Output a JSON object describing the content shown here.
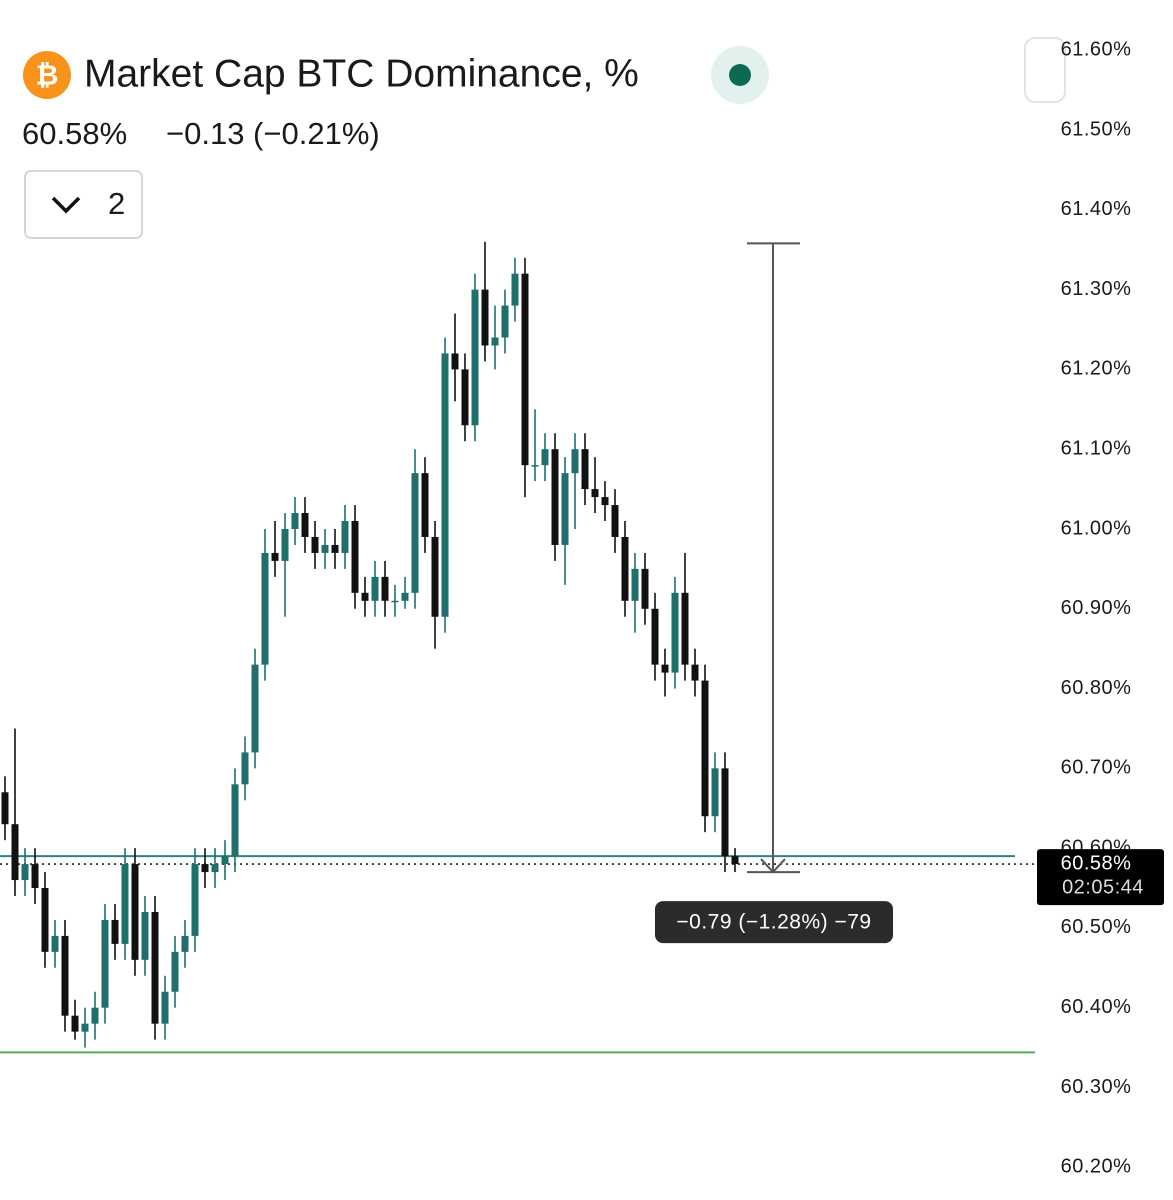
{
  "chart_data": {
    "type": "candlestick",
    "title": "Market Cap BTC Dominance, %",
    "last_value": "60.58%",
    "change": "−0.13 (−0.21%)",
    "indicator_count": "2",
    "up_color": "#1f6f6c",
    "down_color": "#111111",
    "ylim": [
      60.159,
      61.663
    ],
    "yticks": [
      {
        "value": 61.6,
        "label": "61.60%"
      },
      {
        "value": 61.5,
        "label": "61.50%"
      },
      {
        "value": 61.4,
        "label": "61.40%"
      },
      {
        "value": 61.3,
        "label": "61.30%"
      },
      {
        "value": 61.2,
        "label": "61.20%"
      },
      {
        "value": 61.1,
        "label": "61.10%"
      },
      {
        "value": 61.0,
        "label": "61.00%"
      },
      {
        "value": 60.9,
        "label": "60.90%"
      },
      {
        "value": 60.8,
        "label": "60.80%"
      },
      {
        "value": 60.7,
        "label": "60.70%"
      },
      {
        "value": 60.6,
        "label": "60.60%"
      },
      {
        "value": 60.5,
        "label": "60.50%"
      },
      {
        "value": 60.4,
        "label": "60.40%"
      },
      {
        "value": 60.3,
        "label": "60.30%"
      },
      {
        "value": 60.2,
        "label": "60.20%"
      }
    ],
    "grid": false,
    "open": [
      60.67,
      60.63,
      60.56,
      60.58,
      60.55,
      60.47,
      60.49,
      60.39,
      60.37,
      60.38,
      60.4,
      60.51,
      60.48,
      60.58,
      60.46,
      60.52,
      60.38,
      60.42,
      60.47,
      60.49,
      60.58,
      60.57,
      60.58,
      60.59,
      60.68,
      60.72,
      60.83,
      60.97,
      60.96,
      61.0,
      61.02,
      60.99,
      60.97,
      60.98,
      60.97,
      61.01,
      60.92,
      60.91,
      60.94,
      60.91,
      60.91,
      60.92,
      61.07,
      60.99,
      60.89,
      61.22,
      61.2,
      61.13,
      61.3,
      61.23,
      61.24,
      61.28,
      61.32,
      61.08,
      61.08,
      61.1,
      60.98,
      61.07,
      61.1,
      61.05,
      61.04,
      61.03,
      60.99,
      60.91,
      60.95,
      60.9,
      60.83,
      60.82,
      60.92,
      60.83,
      60.81,
      60.64,
      60.7,
      60.59
    ],
    "high": [
      60.69,
      60.75,
      60.6,
      60.6,
      60.57,
      60.51,
      60.51,
      60.41,
      60.4,
      60.42,
      60.53,
      60.53,
      60.6,
      60.6,
      60.54,
      60.54,
      60.44,
      60.49,
      60.51,
      60.6,
      60.6,
      60.6,
      60.61,
      60.7,
      60.74,
      60.85,
      61.0,
      61.01,
      61.02,
      61.04,
      61.04,
      61.01,
      61.0,
      61.0,
      61.03,
      61.03,
      60.94,
      60.96,
      60.96,
      60.93,
      60.94,
      61.1,
      61.09,
      61.01,
      61.24,
      61.27,
      61.22,
      61.32,
      61.36,
      61.28,
      61.3,
      61.34,
      61.34,
      61.15,
      61.12,
      61.12,
      61.09,
      61.12,
      61.12,
      61.09,
      61.06,
      61.05,
      61.01,
      60.97,
      60.97,
      60.92,
      60.85,
      60.94,
      60.97,
      60.85,
      60.83,
      60.72,
      60.72,
      60.6
    ],
    "low": [
      60.61,
      60.54,
      60.54,
      60.53,
      60.45,
      60.45,
      60.37,
      60.36,
      60.35,
      60.36,
      60.38,
      60.46,
      60.46,
      60.44,
      60.44,
      60.36,
      60.36,
      60.4,
      60.45,
      60.47,
      60.55,
      60.55,
      60.56,
      60.57,
      60.66,
      60.7,
      60.81,
      60.94,
      60.89,
      60.98,
      60.97,
      60.95,
      60.95,
      60.95,
      60.95,
      60.9,
      60.89,
      60.89,
      60.89,
      60.89,
      60.9,
      60.9,
      60.97,
      60.85,
      60.87,
      61.16,
      61.11,
      61.11,
      61.21,
      61.2,
      61.22,
      61.26,
      61.04,
      61.06,
      61.06,
      60.96,
      60.93,
      61.0,
      61.03,
      61.02,
      61.01,
      60.97,
      60.89,
      60.87,
      60.88,
      60.81,
      60.79,
      60.8,
      60.81,
      60.79,
      60.62,
      60.62,
      60.57,
      60.57
    ],
    "close": [
      60.63,
      60.56,
      60.58,
      60.55,
      60.47,
      60.49,
      60.39,
      60.37,
      60.38,
      60.4,
      60.51,
      60.48,
      60.58,
      60.46,
      60.52,
      60.38,
      60.42,
      60.47,
      60.49,
      60.58,
      60.57,
      60.58,
      60.59,
      60.68,
      60.72,
      60.83,
      60.97,
      60.96,
      61.0,
      61.02,
      60.99,
      60.97,
      60.98,
      60.97,
      61.01,
      60.92,
      60.91,
      60.94,
      60.91,
      60.91,
      60.92,
      61.07,
      60.99,
      60.89,
      61.22,
      61.2,
      61.13,
      61.3,
      61.23,
      61.24,
      61.28,
      61.32,
      61.08,
      61.08,
      61.1,
      60.98,
      61.07,
      61.1,
      61.05,
      61.04,
      61.03,
      60.99,
      60.91,
      60.95,
      60.9,
      60.83,
      60.82,
      60.92,
      60.83,
      60.81,
      60.64,
      60.7,
      60.59,
      60.58
    ],
    "hlines": [
      {
        "value": 60.59,
        "color": "#2a8580"
      },
      {
        "value": 60.344,
        "color": "#4caf50"
      }
    ],
    "last_price": 60.58,
    "price_label": {
      "value": 60.58,
      "label": "60.58%",
      "countdown": "02:05:44"
    },
    "measure": {
      "from": 61.358,
      "to": 60.57,
      "label": "−0.79 (−1.28%) −79"
    }
  }
}
